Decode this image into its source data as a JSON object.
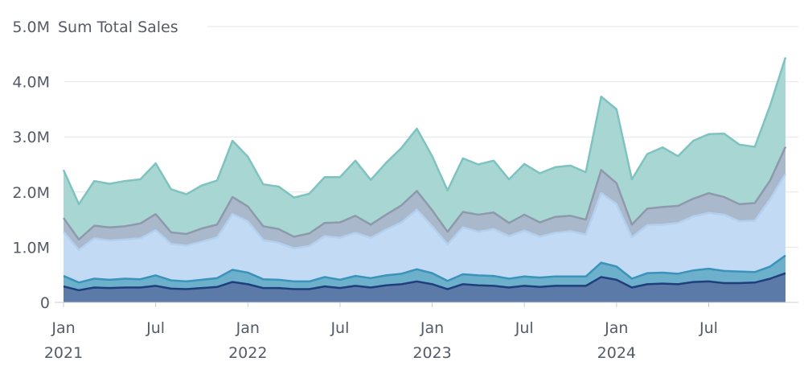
{
  "chart_data": {
    "type": "area",
    "stacked": true,
    "title": "Sum Total Sales",
    "xlabel": "",
    "ylabel": "",
    "ylim": [
      0,
      5000000
    ],
    "yticks": [
      {
        "value": 0,
        "label": "0"
      },
      {
        "value": 1000000,
        "label": "1.0M"
      },
      {
        "value": 2000000,
        "label": "2.0M"
      },
      {
        "value": 3000000,
        "label": "3.0M"
      },
      {
        "value": 4000000,
        "label": "4.0M"
      },
      {
        "value": 5000000,
        "label": "5.0M"
      }
    ],
    "xticks": [
      {
        "index": 0,
        "label": "Jan",
        "sublabel": "2021"
      },
      {
        "index": 6,
        "label": "Jul",
        "sublabel": ""
      },
      {
        "index": 12,
        "label": "Jan",
        "sublabel": "2022"
      },
      {
        "index": 18,
        "label": "Jul",
        "sublabel": ""
      },
      {
        "index": 24,
        "label": "Jan",
        "sublabel": "2023"
      },
      {
        "index": 30,
        "label": "Jul",
        "sublabel": ""
      },
      {
        "index": 36,
        "label": "Jan",
        "sublabel": "2024"
      },
      {
        "index": 42,
        "label": "Jul",
        "sublabel": ""
      }
    ],
    "x": [
      "2021-01",
      "2021-02",
      "2021-03",
      "2021-04",
      "2021-05",
      "2021-06",
      "2021-07",
      "2021-08",
      "2021-09",
      "2021-10",
      "2021-11",
      "2021-12",
      "2022-01",
      "2022-02",
      "2022-03",
      "2022-04",
      "2022-05",
      "2022-06",
      "2022-07",
      "2022-08",
      "2022-09",
      "2022-10",
      "2022-11",
      "2022-12",
      "2023-01",
      "2023-02",
      "2023-03",
      "2023-04",
      "2023-05",
      "2023-06",
      "2023-07",
      "2023-08",
      "2023-09",
      "2023-10",
      "2023-11",
      "2023-12",
      "2024-01",
      "2024-02",
      "2024-03",
      "2024-04",
      "2024-05",
      "2024-06",
      "2024-07",
      "2024-08",
      "2024-09",
      "2024-10",
      "2024-11",
      "2024-12"
    ],
    "cumulative_series": [
      {
        "color": "#5b7aa8",
        "line": "#1f3e7c",
        "values": [
          290000,
          220000,
          270000,
          260000,
          270000,
          270000,
          300000,
          250000,
          240000,
          260000,
          280000,
          370000,
          330000,
          260000,
          260000,
          240000,
          240000,
          290000,
          260000,
          300000,
          270000,
          310000,
          330000,
          380000,
          330000,
          240000,
          330000,
          310000,
          300000,
          270000,
          300000,
          280000,
          300000,
          300000,
          300000,
          460000,
          410000,
          270000,
          330000,
          340000,
          330000,
          370000,
          380000,
          350000,
          350000,
          360000,
          430000,
          530000
        ]
      },
      {
        "color": "#6cb0cc",
        "line": "#3a93ba",
        "values": [
          480000,
          360000,
          430000,
          410000,
          430000,
          420000,
          490000,
          400000,
          380000,
          410000,
          440000,
          590000,
          540000,
          420000,
          410000,
          380000,
          380000,
          460000,
          410000,
          480000,
          440000,
          490000,
          520000,
          600000,
          530000,
          390000,
          510000,
          490000,
          480000,
          430000,
          470000,
          450000,
          470000,
          470000,
          470000,
          720000,
          650000,
          430000,
          530000,
          540000,
          520000,
          580000,
          610000,
          570000,
          560000,
          550000,
          650000,
          850000
        ]
      },
      {
        "color": "#c2daf3",
        "line": "#b3d0ee",
        "values": [
          1280000,
          950000,
          1160000,
          1120000,
          1140000,
          1160000,
          1310000,
          1060000,
          1030000,
          1100000,
          1180000,
          1600000,
          1470000,
          1130000,
          1080000,
          980000,
          1020000,
          1200000,
          1170000,
          1260000,
          1170000,
          1320000,
          1450000,
          1680000,
          1380000,
          1050000,
          1360000,
          1280000,
          1330000,
          1200000,
          1300000,
          1190000,
          1260000,
          1290000,
          1230000,
          1980000,
          1780000,
          1180000,
          1400000,
          1410000,
          1440000,
          1560000,
          1620000,
          1590000,
          1470000,
          1480000,
          1870000,
          2330000
        ]
      },
      {
        "color": "#aab8cc",
        "line": "#8e99ac",
        "values": [
          1530000,
          1140000,
          1390000,
          1360000,
          1380000,
          1430000,
          1600000,
          1270000,
          1240000,
          1340000,
          1410000,
          1910000,
          1740000,
          1380000,
          1330000,
          1190000,
          1250000,
          1440000,
          1450000,
          1570000,
          1410000,
          1590000,
          1760000,
          2020000,
          1670000,
          1280000,
          1640000,
          1590000,
          1630000,
          1440000,
          1590000,
          1450000,
          1550000,
          1570000,
          1500000,
          2400000,
          2160000,
          1410000,
          1700000,
          1730000,
          1750000,
          1880000,
          1980000,
          1910000,
          1780000,
          1800000,
          2210000,
          2820000
        ]
      },
      {
        "color": "#a7d6d3",
        "line": "#7ec3bf",
        "values": [
          2400000,
          1780000,
          2200000,
          2150000,
          2200000,
          2230000,
          2520000,
          2050000,
          1960000,
          2120000,
          2210000,
          2930000,
          2640000,
          2140000,
          2100000,
          1900000,
          1970000,
          2270000,
          2270000,
          2570000,
          2220000,
          2530000,
          2800000,
          3150000,
          2650000,
          2030000,
          2610000,
          2500000,
          2570000,
          2230000,
          2510000,
          2340000,
          2450000,
          2480000,
          2360000,
          3730000,
          3500000,
          2230000,
          2690000,
          2810000,
          2650000,
          2930000,
          3050000,
          3060000,
          2860000,
          2820000,
          3570000,
          4440000
        ]
      }
    ]
  }
}
